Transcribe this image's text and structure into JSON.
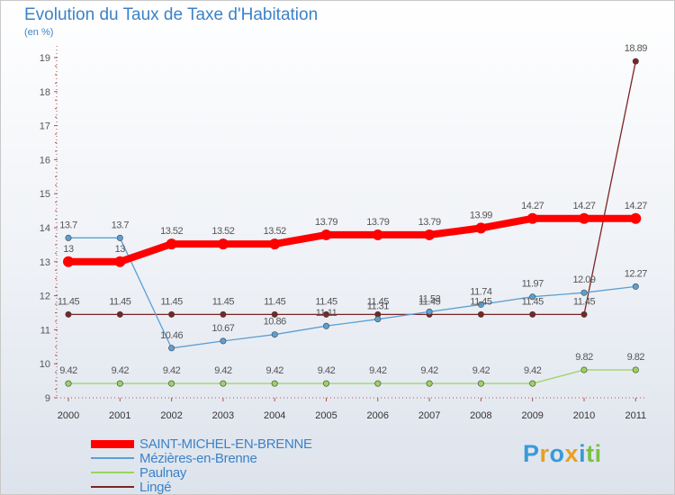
{
  "chart_data": {
    "type": "line",
    "title": "Evolution du Taux de Taxe d'Habitation",
    "ylabel": "(en %)",
    "x": [
      "2000",
      "2001",
      "2002",
      "2003",
      "2004",
      "2005",
      "2006",
      "2007",
      "2008",
      "2009",
      "2010",
      "2011"
    ],
    "ylim": [
      9,
      19.4
    ],
    "yticks": [
      9,
      10,
      11,
      12,
      13,
      14,
      15,
      16,
      17,
      18,
      19
    ],
    "grid": false,
    "legend_position": "bottom-left",
    "series": [
      {
        "name": "SAINT-MICHEL-EN-BRENNE",
        "color": "#ff0000",
        "values": [
          13,
          13,
          13.52,
          13.52,
          13.52,
          13.79,
          13.79,
          13.79,
          13.99,
          14.27,
          14.27,
          14.27
        ],
        "labels": [
          "13",
          "13",
          "13.52",
          "13.52",
          "13.52",
          "13.79",
          "13.79",
          "13.79",
          "13.99",
          "14.27",
          "14.27",
          "14.27"
        ]
      },
      {
        "name": "Mézières-en-Brenne",
        "color": "#5c9fd4",
        "values": [
          13.7,
          13.7,
          10.46,
          10.67,
          10.86,
          11.11,
          11.31,
          11.53,
          11.74,
          11.97,
          12.09,
          12.27
        ],
        "labels": [
          "13.7",
          "13.7",
          "10.46",
          "10.67",
          "10.86",
          "11.11",
          "11.31",
          "11.53",
          "11.74",
          "11.97",
          "12.09",
          "12.27"
        ]
      },
      {
        "name": "Paulnay",
        "color": "#9ad45e",
        "values": [
          9.42,
          9.42,
          9.42,
          9.42,
          9.42,
          9.42,
          9.42,
          9.42,
          9.42,
          9.42,
          9.82,
          9.82
        ],
        "labels": [
          "9.42",
          "9.42",
          "9.42",
          "9.42",
          "9.42",
          "9.42",
          "9.42",
          "9.42",
          "9.42",
          "9.42",
          "9.82",
          "9.82"
        ]
      },
      {
        "name": "Lingé",
        "color": "#7a2525",
        "values": [
          11.45,
          11.45,
          11.45,
          11.45,
          11.45,
          11.45,
          11.45,
          11.45,
          11.45,
          11.45,
          11.45,
          18.89
        ],
        "labels": [
          "11.45",
          "11.45",
          "11.45",
          "11.45",
          "11.45",
          "11.45",
          "11.45",
          "11.45",
          "11.45",
          "11.45",
          "11.45",
          "18.89"
        ]
      }
    ]
  },
  "brand": {
    "letters": [
      {
        "ch": "P",
        "color": "#3a9ad9"
      },
      {
        "ch": "r",
        "color": "#e8a020"
      },
      {
        "ch": "o",
        "color": "#3a9ad9"
      },
      {
        "ch": "x",
        "color": "#e8a020"
      },
      {
        "ch": "i",
        "color": "#3a9ad9"
      },
      {
        "ch": "t",
        "color": "#7ac142"
      },
      {
        "ch": "i",
        "color": "#7ac142"
      }
    ]
  }
}
